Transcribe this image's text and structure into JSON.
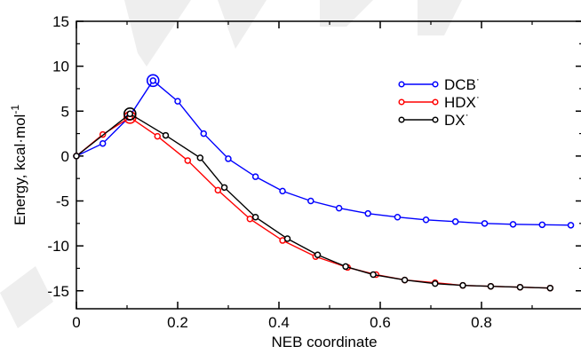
{
  "chart_data": {
    "type": "line",
    "title": "",
    "xlabel": "NEB coordinate",
    "ylabel": "Energy, kcal·mol",
    "ylabel_exponent": "-1",
    "xlim": [
      0,
      1
    ],
    "ylim": [
      -17,
      15
    ],
    "x_ticks": [
      "0",
      "0.2",
      "0.4",
      "0.6",
      "0.8"
    ],
    "x_tick_values": [
      0,
      0.2,
      0.4,
      0.6,
      0.8
    ],
    "y_ticks": [
      "15",
      "10",
      "5",
      "0",
      "-5",
      "-10",
      "-15"
    ],
    "y_tick_values": [
      15,
      10,
      5,
      0,
      -5,
      -10,
      -15
    ],
    "legend_position": "top-right",
    "series": [
      {
        "name": "DCB",
        "superscript": "·",
        "color": "#0000ff",
        "x": [
          0,
          0.0521,
          0.1037,
          0.1513,
          0.2,
          0.2513,
          0.2999,
          0.3537,
          0.4071,
          0.4628,
          0.5187,
          0.5758,
          0.6341,
          0.6904,
          0.7485,
          0.8062,
          0.8623,
          0.9198,
          0.9764
        ],
        "y": [
          0,
          1.4,
          4.3,
          8.4,
          6.1,
          2.5,
          -0.3,
          -2.3,
          -3.9,
          -5.0,
          -5.8,
          -6.4,
          -6.8,
          -7.1,
          -7.3,
          -7.5,
          -7.6,
          -7.65,
          -7.7
        ],
        "highlight_index": 3
      },
      {
        "name": "HDX",
        "superscript": "·",
        "color": "#ff0000",
        "x": [
          0,
          0.0521,
          0.1058,
          0.1601,
          0.2198,
          0.2795,
          0.3427,
          0.4071,
          0.4724,
          0.5355,
          0.5918,
          0.6484,
          0.7084,
          0.7631,
          0.8183,
          0.8762,
          0.9356
        ],
        "y": [
          0,
          2.4,
          4.3,
          2.2,
          -0.5,
          -3.8,
          -7.0,
          -9.4,
          -11.2,
          -12.4,
          -13.2,
          -13.8,
          -14.1,
          -14.4,
          -14.5,
          -14.6,
          -14.7
        ],
        "highlight_index": 2
      },
      {
        "name": "DX",
        "superscript": "·",
        "color": "#000000",
        "x": [
          0,
          0.1058,
          0.1763,
          0.2444,
          0.2922,
          0.3537,
          0.4167,
          0.4764,
          0.5317,
          0.5862,
          0.6484,
          0.7084,
          0.7631,
          0.8183,
          0.8762,
          0.9356
        ],
        "y": [
          0,
          4.7,
          2.3,
          -0.2,
          -3.5,
          -6.8,
          -9.2,
          -11.0,
          -12.3,
          -13.2,
          -13.8,
          -14.2,
          -14.4,
          -14.5,
          -14.6,
          -14.7
        ],
        "highlight_index": 1
      }
    ]
  },
  "watermark_color": "#e6e6e6"
}
